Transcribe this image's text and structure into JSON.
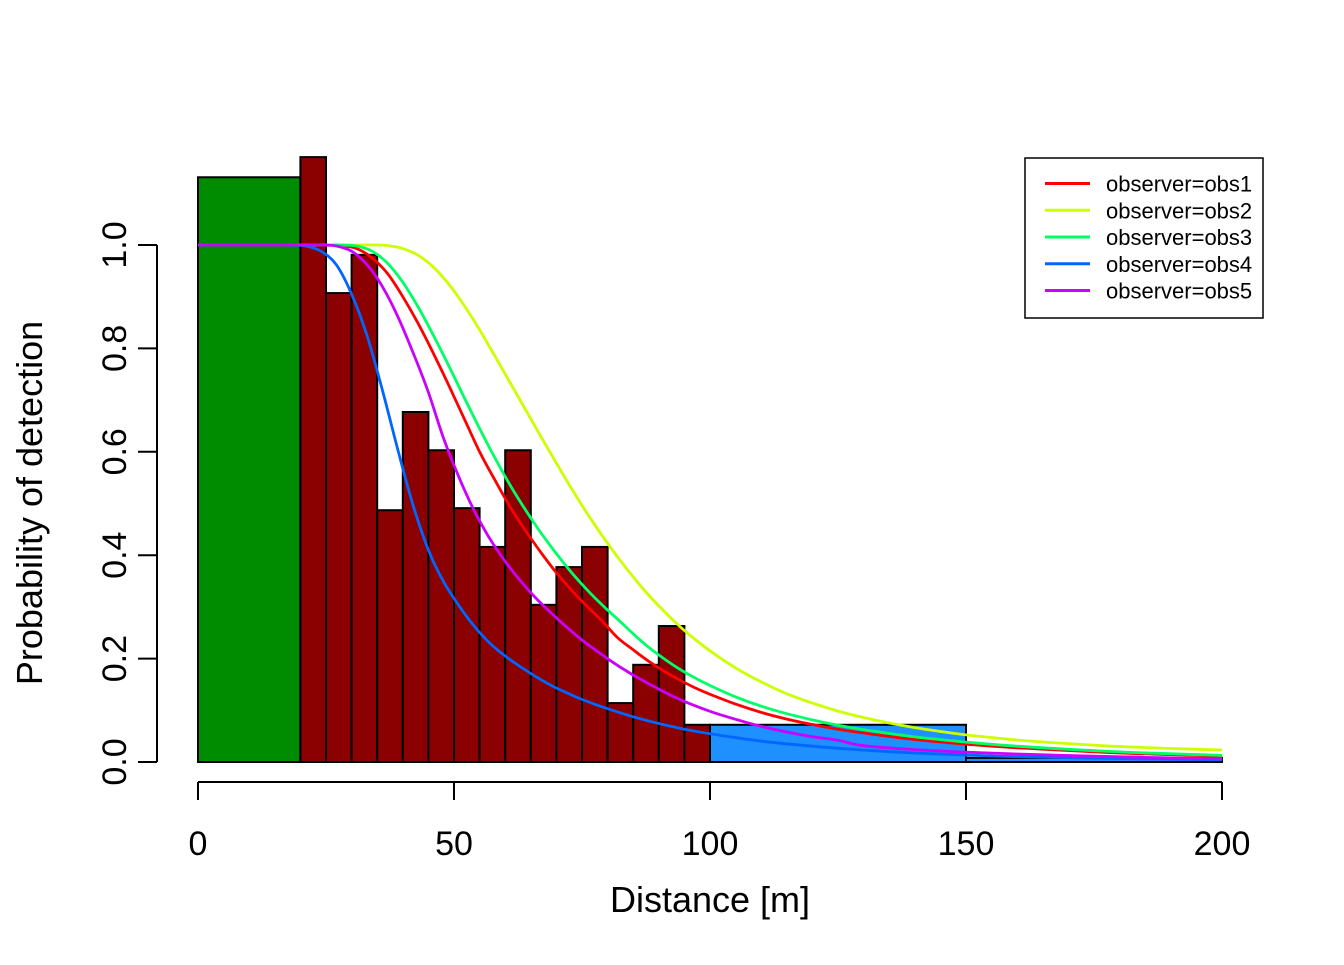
{
  "chart_data": {
    "type": "histogram_with_detection_curves",
    "xlabel": "Distance [m]",
    "ylabel": "Probability of detection",
    "x_ticks": [
      "0",
      "50",
      "100",
      "150",
      "200"
    ],
    "x_tick_values": [
      0,
      50,
      100,
      150,
      200
    ],
    "y_ticks": [
      "0.0",
      "0.2",
      "0.4",
      "0.6",
      "0.8",
      "1.0"
    ],
    "y_tick_values": [
      0.0,
      0.2,
      0.4,
      0.6,
      0.8,
      1.0
    ],
    "xlim": [
      0,
      200
    ],
    "ylim": [
      0.0,
      1.0
    ],
    "grid": false,
    "bar_colors": {
      "left": "#008C00",
      "middle": "#8B0000",
      "right": "#1E90FF"
    },
    "bars": [
      {
        "x0": 0,
        "x1": 20,
        "height": 1.131,
        "color": "left"
      },
      {
        "x0": 20,
        "x1": 25,
        "height": 1.17,
        "color": "middle"
      },
      {
        "x0": 25,
        "x1": 30,
        "height": 0.907,
        "color": "middle"
      },
      {
        "x0": 30,
        "x1": 35,
        "height": 0.981,
        "color": "middle"
      },
      {
        "x0": 35,
        "x1": 40,
        "height": 0.487,
        "color": "middle"
      },
      {
        "x0": 40,
        "x1": 45,
        "height": 0.677,
        "color": "middle"
      },
      {
        "x0": 45,
        "x1": 50,
        "height": 0.603,
        "color": "middle"
      },
      {
        "x0": 50,
        "x1": 55,
        "height": 0.491,
        "color": "middle"
      },
      {
        "x0": 55,
        "x1": 60,
        "height": 0.416,
        "color": "middle"
      },
      {
        "x0": 60,
        "x1": 65,
        "height": 0.603,
        "color": "middle"
      },
      {
        "x0": 65,
        "x1": 70,
        "height": 0.304,
        "color": "middle"
      },
      {
        "x0": 70,
        "x1": 75,
        "height": 0.377,
        "color": "middle"
      },
      {
        "x0": 75,
        "x1": 80,
        "height": 0.416,
        "color": "middle"
      },
      {
        "x0": 80,
        "x1": 85,
        "height": 0.114,
        "color": "middle"
      },
      {
        "x0": 85,
        "x1": 90,
        "height": 0.188,
        "color": "middle"
      },
      {
        "x0": 90,
        "x1": 95,
        "height": 0.263,
        "color": "middle"
      },
      {
        "x0": 95,
        "x1": 100,
        "height": 0.072,
        "color": "middle"
      },
      {
        "x0": 100,
        "x1": 150,
        "height": 0.072,
        "color": "right"
      },
      {
        "x0": 150,
        "x1": 200,
        "height": 0.008,
        "color": "right"
      }
    ],
    "series": [
      {
        "name": "observer=obs1",
        "color": "#FF0000",
        "points": [
          [
            0,
            1
          ],
          [
            22,
            1
          ],
          [
            25,
            1
          ],
          [
            28,
            0.999
          ],
          [
            31,
            0.993
          ],
          [
            34,
            0.975
          ],
          [
            37,
            0.945
          ],
          [
            40,
            0.9
          ],
          [
            43,
            0.848
          ],
          [
            46,
            0.79
          ],
          [
            49,
            0.728
          ],
          [
            52,
            0.664
          ],
          [
            55,
            0.6
          ],
          [
            58,
            0.545
          ],
          [
            61,
            0.493
          ],
          [
            64,
            0.447
          ],
          [
            67,
            0.405
          ],
          [
            70,
            0.366
          ],
          [
            73,
            0.332
          ],
          [
            76,
            0.301
          ],
          [
            79,
            0.272
          ],
          [
            82,
            0.24
          ],
          [
            85,
            0.217
          ],
          [
            88,
            0.195
          ],
          [
            91,
            0.176
          ],
          [
            94,
            0.159
          ],
          [
            97,
            0.144
          ],
          [
            100,
            0.131
          ],
          [
            105,
            0.112
          ],
          [
            110,
            0.096
          ],
          [
            115,
            0.083
          ],
          [
            120,
            0.0725
          ],
          [
            125,
            0.0635
          ],
          [
            130,
            0.056
          ],
          [
            140,
            0.0435
          ],
          [
            150,
            0.0345
          ],
          [
            160,
            0.0275
          ],
          [
            180,
            0.0175
          ],
          [
            200,
            0.0115
          ]
        ]
      },
      {
        "name": "observer=obs2",
        "color": "#CCFF00",
        "points": [
          [
            0,
            1
          ],
          [
            31,
            1
          ],
          [
            34,
            1
          ],
          [
            37,
            0.999
          ],
          [
            40,
            0.993
          ],
          [
            43,
            0.98
          ],
          [
            46,
            0.957
          ],
          [
            49,
            0.924
          ],
          [
            52,
            0.883
          ],
          [
            55,
            0.836
          ],
          [
            58,
            0.785
          ],
          [
            61,
            0.733
          ],
          [
            64,
            0.681
          ],
          [
            67,
            0.629
          ],
          [
            70,
            0.578
          ],
          [
            73,
            0.528
          ],
          [
            76,
            0.481
          ],
          [
            79,
            0.437
          ],
          [
            82,
            0.396
          ],
          [
            85,
            0.358
          ],
          [
            88,
            0.323
          ],
          [
            91,
            0.292
          ],
          [
            94,
            0.263
          ],
          [
            97,
            0.238
          ],
          [
            100,
            0.215
          ],
          [
            105,
            0.182
          ],
          [
            110,
            0.155
          ],
          [
            115,
            0.132
          ],
          [
            120,
            0.114
          ],
          [
            125,
            0.0985
          ],
          [
            130,
            0.086
          ],
          [
            135,
            0.0755
          ],
          [
            140,
            0.0665
          ],
          [
            145,
            0.059
          ],
          [
            150,
            0.0525
          ],
          [
            160,
            0.0425
          ],
          [
            170,
            0.0355
          ],
          [
            180,
            0.03
          ],
          [
            190,
            0.0262
          ],
          [
            200,
            0.0232
          ]
        ]
      },
      {
        "name": "observer=obs3",
        "color": "#00FF66",
        "points": [
          [
            0,
            1
          ],
          [
            24,
            1
          ],
          [
            28,
            1
          ],
          [
            31,
            0.998
          ],
          [
            34,
            0.988
          ],
          [
            37,
            0.965
          ],
          [
            40,
            0.928
          ],
          [
            43,
            0.88
          ],
          [
            46,
            0.825
          ],
          [
            49,
            0.766
          ],
          [
            52,
            0.705
          ],
          [
            55,
            0.645
          ],
          [
            58,
            0.588
          ],
          [
            61,
            0.535
          ],
          [
            64,
            0.487
          ],
          [
            67,
            0.443
          ],
          [
            70,
            0.403
          ],
          [
            73,
            0.366
          ],
          [
            76,
            0.333
          ],
          [
            79,
            0.303
          ],
          [
            82,
            0.276
          ],
          [
            85,
            0.248
          ],
          [
            88,
            0.222
          ],
          [
            91,
            0.2
          ],
          [
            94,
            0.18
          ],
          [
            97,
            0.163
          ],
          [
            100,
            0.148
          ],
          [
            105,
            0.126
          ],
          [
            110,
            0.108
          ],
          [
            115,
            0.0935
          ],
          [
            120,
            0.0815
          ],
          [
            125,
            0.071
          ],
          [
            130,
            0.0625
          ],
          [
            140,
            0.0485
          ],
          [
            150,
            0.0385
          ],
          [
            160,
            0.0305
          ],
          [
            180,
            0.0195
          ],
          [
            200,
            0.0128
          ]
        ]
      },
      {
        "name": "observer=obs4",
        "color": "#0066FF",
        "points": [
          [
            0,
            1
          ],
          [
            15,
            1
          ],
          [
            18,
            1
          ],
          [
            21,
            0.998
          ],
          [
            24,
            0.988
          ],
          [
            27,
            0.962
          ],
          [
            30,
            0.905
          ],
          [
            33,
            0.825
          ],
          [
            36,
            0.72
          ],
          [
            39,
            0.605
          ],
          [
            42,
            0.497
          ],
          [
            45,
            0.41
          ],
          [
            48,
            0.348
          ],
          [
            51,
            0.302
          ],
          [
            54,
            0.262
          ],
          [
            57,
            0.23
          ],
          [
            60,
            0.205
          ],
          [
            63,
            0.184
          ],
          [
            66,
            0.165
          ],
          [
            69,
            0.148
          ],
          [
            72,
            0.134
          ],
          [
            75,
            0.121
          ],
          [
            80,
            0.103
          ],
          [
            85,
            0.0875
          ],
          [
            90,
            0.0745
          ],
          [
            95,
            0.0635
          ],
          [
            100,
            0.0545
          ],
          [
            110,
            0.0405
          ],
          [
            120,
            0.0305
          ],
          [
            130,
            0.023
          ],
          [
            140,
            0.0175
          ],
          [
            150,
            0.0135
          ],
          [
            160,
            0.0105
          ],
          [
            180,
            0.0065
          ],
          [
            200,
            0.0042
          ]
        ]
      },
      {
        "name": "observer=obs5",
        "color": "#CC00FF",
        "points": [
          [
            0,
            1
          ],
          [
            21,
            1
          ],
          [
            24,
            1
          ],
          [
            27,
            0.998
          ],
          [
            30,
            0.988
          ],
          [
            33,
            0.962
          ],
          [
            36,
            0.92
          ],
          [
            39,
            0.862
          ],
          [
            42,
            0.792
          ],
          [
            45,
            0.715
          ],
          [
            48,
            0.625
          ],
          [
            51,
            0.55
          ],
          [
            54,
            0.485
          ],
          [
            57,
            0.432
          ],
          [
            60,
            0.388
          ],
          [
            63,
            0.35
          ],
          [
            66,
            0.317
          ],
          [
            69,
            0.288
          ],
          [
            72,
            0.261
          ],
          [
            75,
            0.236
          ],
          [
            78,
            0.214
          ],
          [
            81,
            0.193
          ],
          [
            84,
            0.174
          ],
          [
            87,
            0.157
          ],
          [
            90,
            0.141
          ],
          [
            93,
            0.126
          ],
          [
            96,
            0.113
          ],
          [
            100,
            0.098
          ],
          [
            105,
            0.0825
          ],
          [
            110,
            0.069
          ],
          [
            115,
            0.058
          ],
          [
            120,
            0.049
          ],
          [
            125,
            0.042
          ],
          [
            130,
            0.0315
          ],
          [
            140,
            0.024
          ],
          [
            150,
            0.019
          ],
          [
            160,
            0.0155
          ],
          [
            170,
            0.0125
          ],
          [
            180,
            0.01
          ],
          [
            190,
            0.008
          ],
          [
            200,
            0.0063
          ]
        ]
      }
    ],
    "legend": {
      "position": "top-right",
      "entries": [
        {
          "label": "observer=obs1",
          "color": "#FF0000"
        },
        {
          "label": "observer=obs2",
          "color": "#CCFF00"
        },
        {
          "label": "observer=obs3",
          "color": "#00FF66"
        },
        {
          "label": "observer=obs4",
          "color": "#0066FF"
        },
        {
          "label": "observer=obs5",
          "color": "#CC00FF"
        }
      ]
    }
  }
}
